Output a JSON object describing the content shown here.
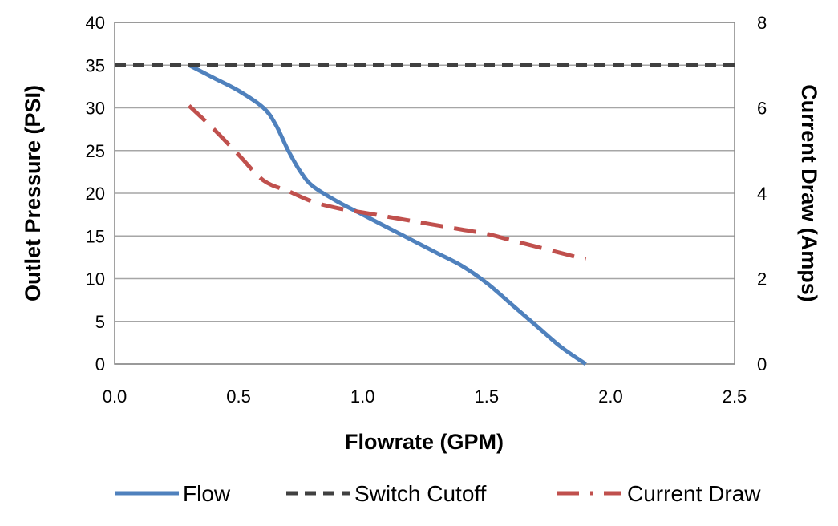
{
  "chart_data": {
    "type": "line",
    "title": "",
    "xlabel": "Flowrate (GPM)",
    "ylabel": "Outlet Pressure (PSI)",
    "y2label": "Current Draw (Amps)",
    "xlim": [
      0,
      2.5
    ],
    "ylim": [
      0,
      40
    ],
    "y2lim": [
      0,
      8
    ],
    "xticks": [
      "0.0",
      "0.5",
      "1.0",
      "1.5",
      "2.0",
      "2.5"
    ],
    "yticks": [
      "0",
      "5",
      "10",
      "15",
      "20",
      "25",
      "30",
      "35",
      "40"
    ],
    "y2ticks": [
      "0",
      "2",
      "4",
      "6",
      "8"
    ],
    "grid": true,
    "legend_position": "bottom",
    "series": [
      {
        "name": "Flow",
        "axis": "left",
        "style": "solid",
        "color": "#4f81bd",
        "x": [
          0.3,
          0.4,
          0.5,
          0.6,
          0.65,
          0.7,
          0.75,
          0.8,
          0.9,
          1.0,
          1.1,
          1.2,
          1.3,
          1.4,
          1.5,
          1.6,
          1.7,
          1.8,
          1.9
        ],
        "y": [
          35,
          33.5,
          32,
          30,
          28,
          25,
          22.5,
          20.8,
          19,
          17.5,
          16,
          14.5,
          13,
          11.5,
          9.5,
          7,
          4.5,
          2,
          0
        ]
      },
      {
        "name": "Switch Cutoff",
        "axis": "left",
        "style": "dashed",
        "color": "#404040",
        "x": [
          0,
          2.5
        ],
        "y": [
          35,
          35
        ]
      },
      {
        "name": "Current Draw",
        "axis": "right",
        "style": "long-dash",
        "color": "#c0504d",
        "x": [
          0.3,
          0.4,
          0.5,
          0.6,
          0.7,
          0.8,
          0.9,
          1.0,
          1.1,
          1.2,
          1.3,
          1.4,
          1.5,
          1.6,
          1.7,
          1.8,
          1.9
        ],
        "y": [
          6.05,
          5.5,
          4.9,
          4.3,
          4.05,
          3.8,
          3.65,
          3.55,
          3.45,
          3.35,
          3.25,
          3.15,
          3.05,
          2.9,
          2.75,
          2.6,
          2.45
        ]
      }
    ]
  }
}
